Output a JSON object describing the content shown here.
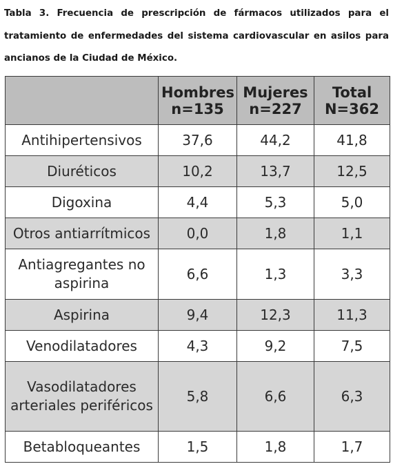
{
  "caption": "Tabla 3. Frecuencia de prescripción de fármacos utilizados para el tratamiento de enfermedades del sistema cardiovascular en asilos para ancianos de la Ciudad de México.",
  "table": {
    "headers": [
      {
        "line1": "",
        "line2": ""
      },
      {
        "line1": "Hombres",
        "line2": "n=135"
      },
      {
        "line1": "Mujeres",
        "line2": "n=227"
      },
      {
        "line1": "Total",
        "line2": "N=362"
      }
    ],
    "rows": [
      [
        "Antihipertensivos",
        "37,6",
        "44,2",
        "41,8"
      ],
      [
        "Diuréticos",
        "10,2",
        "13,7",
        "12,5"
      ],
      [
        "Digoxina",
        "4,4",
        "5,3",
        "5,0"
      ],
      [
        "Otros antiarrítmicos",
        "0,0",
        "1,8",
        "1,1"
      ],
      [
        "Antiagregantes no aspirina",
        "6,6",
        "1,3",
        "3,3"
      ],
      [
        "Aspirina",
        "9,4",
        "12,3",
        "11,3"
      ],
      [
        "Venodilatadores",
        "4,3",
        "9,2",
        "7,5"
      ],
      [
        "Vasodilatadores arteriales periféricos",
        "5,8",
        "6,6",
        "6,3"
      ],
      [
        "Betabloqueantes",
        "1,5",
        "1,8",
        "1,7"
      ]
    ]
  }
}
